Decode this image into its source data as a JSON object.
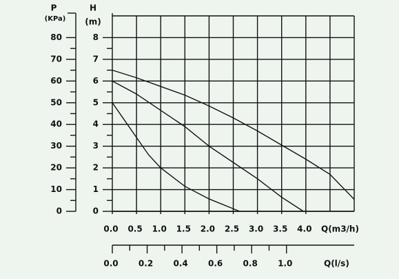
{
  "chart_data": {
    "type": "line",
    "x_label": "Q(m3/h)",
    "y_label": "H",
    "y_unit": "(m)",
    "p_label": "P",
    "p_unit": "(KPa)",
    "x2_label": "Q(l/s)",
    "xlim": [
      0,
      5
    ],
    "ylim": [
      0,
      9
    ],
    "xticks": [
      {
        "value": 0,
        "label": "0.0"
      },
      0.5,
      {
        "value": 1,
        "label": "1.0"
      },
      1.5,
      {
        "value": 2,
        "label": "2.0"
      },
      2.5,
      {
        "value": 3,
        "label": "3.0"
      },
      3.5,
      {
        "value": 4,
        "label": "4.0"
      }
    ],
    "xgrid": [
      0.5,
      1,
      1.5,
      2,
      2.5,
      3,
      3.5,
      4,
      4.5,
      5
    ],
    "yticks": [
      0,
      1,
      2,
      3,
      4,
      5,
      6,
      7,
      8
    ],
    "yminorticks": [
      0.5,
      1.5,
      2.5,
      3.5,
      4.5,
      5.5,
      6.5,
      7.5
    ],
    "plim": [
      0,
      90
    ],
    "pticks": [
      0,
      10,
      20,
      30,
      40,
      50,
      60,
      70,
      80
    ],
    "pminorticks": [
      5,
      15,
      25,
      35,
      45,
      55,
      65,
      75
    ],
    "x2lim": [
      0,
      1.3889
    ],
    "x2ticks": [
      {
        "value": 0,
        "label": "0.0"
      },
      0.2,
      0.4,
      0.6,
      0.8,
      {
        "value": 1,
        "label": "1.0"
      }
    ],
    "x2minorticks": [
      0.1,
      0.3,
      0.5,
      0.7,
      0.9
    ],
    "grid": true,
    "series": [
      {
        "color": "#111111",
        "x": [
          0,
          0.25,
          0.5,
          0.75,
          1,
          1.5,
          2,
          2.5,
          2.63
        ],
        "values": [
          5,
          4.2,
          3.4,
          2.6,
          2.0,
          1.15,
          0.57,
          0.12,
          0
        ]
      },
      {
        "color": "#111111",
        "x": [
          0,
          0.5,
          1,
          1.5,
          2,
          2.5,
          3,
          3.5,
          3.95
        ],
        "values": [
          6,
          5.4,
          4.65,
          3.9,
          3.0,
          2.25,
          1.5,
          0.65,
          0
        ]
      },
      {
        "color": "#111111",
        "x": [
          0,
          0.5,
          1,
          1.5,
          2,
          2.5,
          3,
          3.5,
          4,
          4.5,
          5
        ],
        "values": [
          6.5,
          6.15,
          5.75,
          5.35,
          4.85,
          4.3,
          3.7,
          3.05,
          2.4,
          1.7,
          0.55
        ]
      }
    ]
  }
}
